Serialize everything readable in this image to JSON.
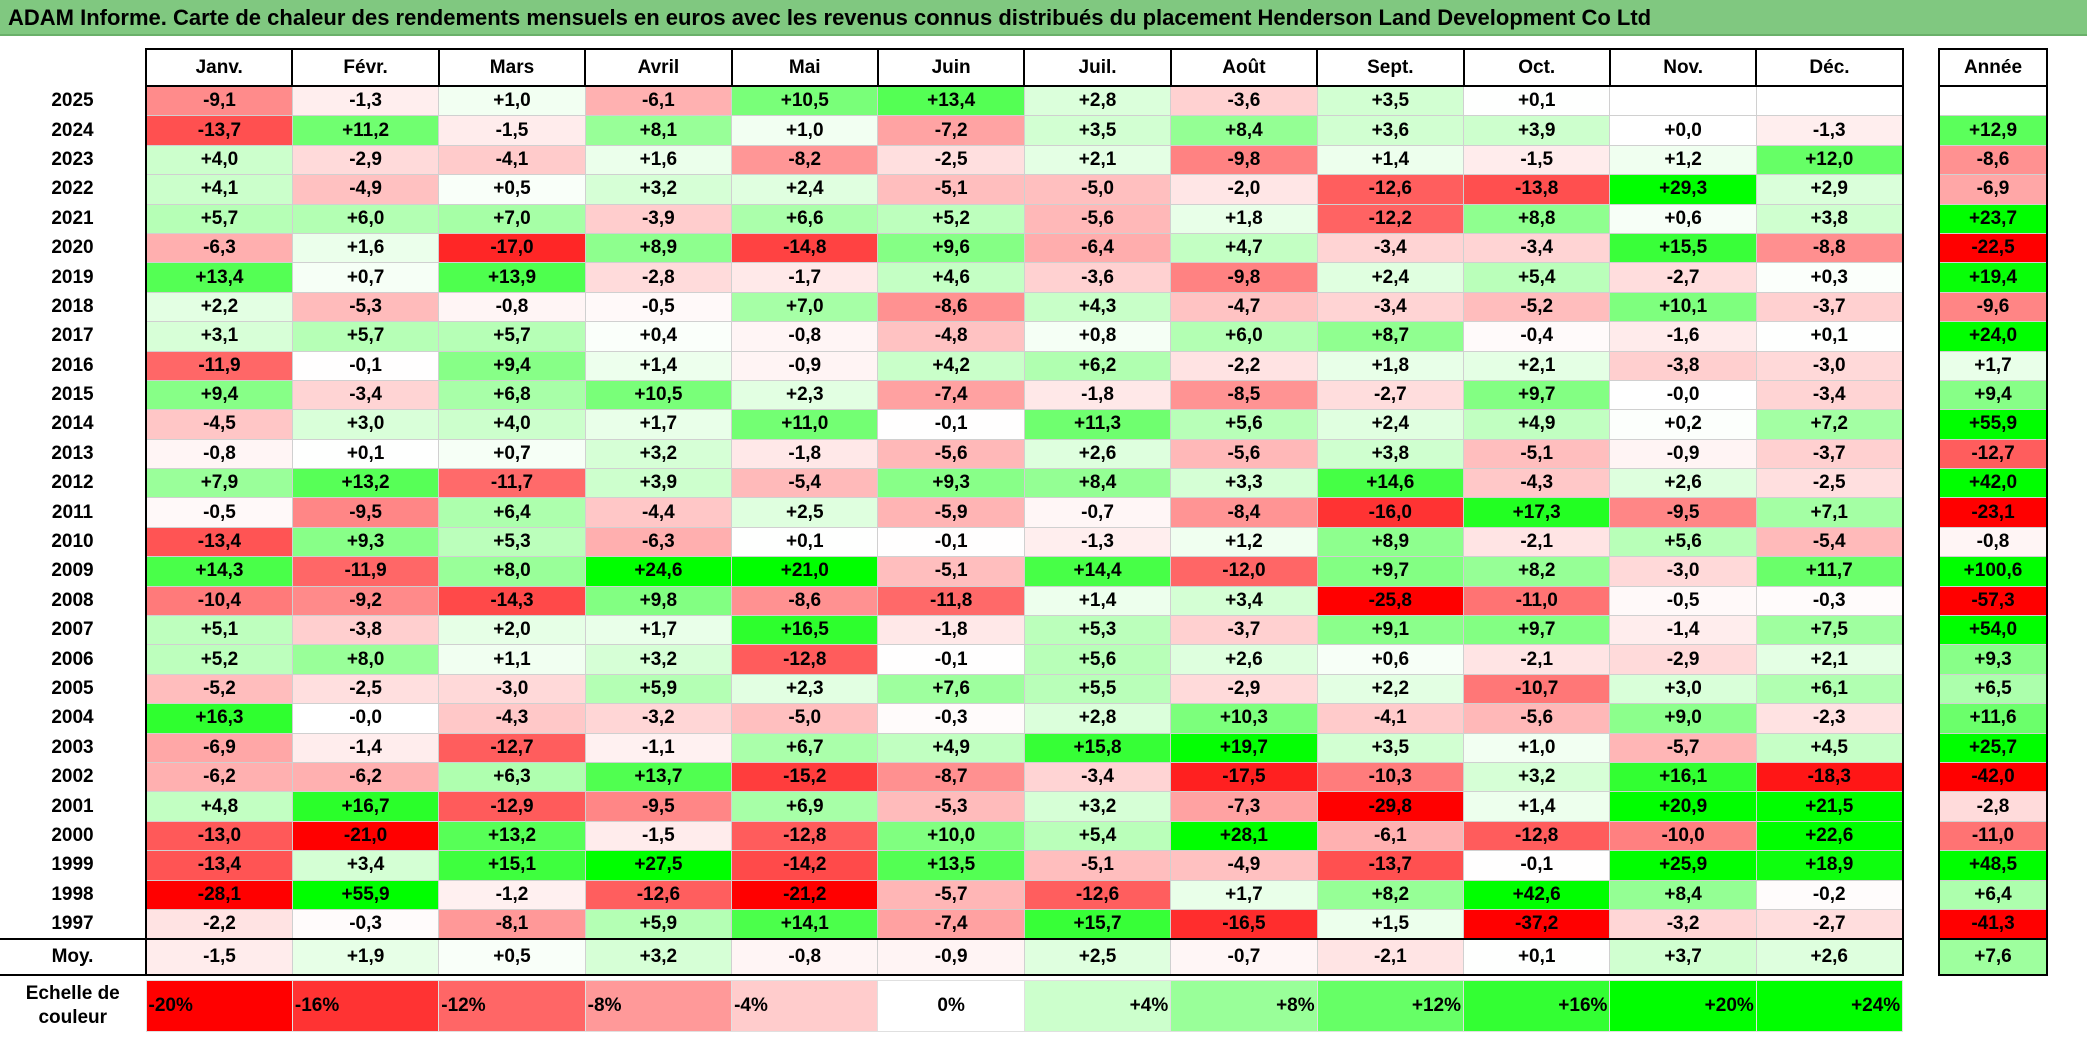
{
  "title": "ADAM Informe. Carte de chaleur des rendements mensuels en euros avec les revenus connus distribués du placement Henderson Land Development Co Ltd",
  "colors": {
    "negative": "#ff0000",
    "positive": "#00ff00",
    "neutral": "#ffffff",
    "title_bg": "#80c880"
  },
  "chart_data": {
    "type": "heatmap",
    "title": "ADAM Informe. Carte de chaleur des rendements mensuels en euros avec les revenus connus distribués du placement Henderson Land Development Co Ltd",
    "columns": [
      "Janv.",
      "Févr.",
      "Mars",
      "Avril",
      "Mai",
      "Juin",
      "Juil.",
      "Août",
      "Sept.",
      "Oct.",
      "Nov.",
      "Déc."
    ],
    "annual_header": "Année",
    "rows": [
      {
        "year": "2025",
        "values": [
          "-9,1",
          "-1,3",
          "+1,0",
          "-6,1",
          "+10,5",
          "+13,4",
          "+2,8",
          "-3,6",
          "+3,5",
          "+0,1",
          "",
          ""
        ],
        "annual": ""
      },
      {
        "year": "2024",
        "values": [
          "-13,7",
          "+11,2",
          "-1,5",
          "+8,1",
          "+1,0",
          "-7,2",
          "+3,5",
          "+8,4",
          "+3,6",
          "+3,9",
          "+0,0",
          "-1,3"
        ],
        "annual": "+12,9"
      },
      {
        "year": "2023",
        "values": [
          "+4,0",
          "-2,9",
          "-4,1",
          "+1,6",
          "-8,2",
          "-2,5",
          "+2,1",
          "-9,8",
          "+1,4",
          "-1,5",
          "+1,2",
          "+12,0"
        ],
        "annual": "-8,6"
      },
      {
        "year": "2022",
        "values": [
          "+4,1",
          "-4,9",
          "+0,5",
          "+3,2",
          "+2,4",
          "-5,1",
          "-5,0",
          "-2,0",
          "-12,6",
          "-13,8",
          "+29,3",
          "+2,9"
        ],
        "annual": "-6,9"
      },
      {
        "year": "2021",
        "values": [
          "+5,7",
          "+6,0",
          "+7,0",
          "-3,9",
          "+6,6",
          "+5,2",
          "-5,6",
          "+1,8",
          "-12,2",
          "+8,8",
          "+0,6",
          "+3,8"
        ],
        "annual": "+23,7"
      },
      {
        "year": "2020",
        "values": [
          "-6,3",
          "+1,6",
          "-17,0",
          "+8,9",
          "-14,8",
          "+9,6",
          "-6,4",
          "+4,7",
          "-3,4",
          "-3,4",
          "+15,5",
          "-8,8"
        ],
        "annual": "-22,5"
      },
      {
        "year": "2019",
        "values": [
          "+13,4",
          "+0,7",
          "+13,9",
          "-2,8",
          "-1,7",
          "+4,6",
          "-3,6",
          "-9,8",
          "+2,4",
          "+5,4",
          "-2,7",
          "+0,3"
        ],
        "annual": "+19,4"
      },
      {
        "year": "2018",
        "values": [
          "+2,2",
          "-5,3",
          "-0,8",
          "-0,5",
          "+7,0",
          "-8,6",
          "+4,3",
          "-4,7",
          "-3,4",
          "-5,2",
          "+10,1",
          "-3,7"
        ],
        "annual": "-9,6"
      },
      {
        "year": "2017",
        "values": [
          "+3,1",
          "+5,7",
          "+5,7",
          "+0,4",
          "-0,8",
          "-4,8",
          "+0,8",
          "+6,0",
          "+8,7",
          "-0,4",
          "-1,6",
          "+0,1"
        ],
        "annual": "+24,0"
      },
      {
        "year": "2016",
        "values": [
          "-11,9",
          "-0,1",
          "+9,4",
          "+1,4",
          "-0,9",
          "+4,2",
          "+6,2",
          "-2,2",
          "+1,8",
          "+2,1",
          "-3,8",
          "-3,0"
        ],
        "annual": "+1,7"
      },
      {
        "year": "2015",
        "values": [
          "+9,4",
          "-3,4",
          "+6,8",
          "+10,5",
          "+2,3",
          "-7,4",
          "-1,8",
          "-8,5",
          "-2,7",
          "+9,7",
          "-0,0",
          "-3,4"
        ],
        "annual": "+9,4"
      },
      {
        "year": "2014",
        "values": [
          "-4,5",
          "+3,0",
          "+4,0",
          "+1,7",
          "+11,0",
          "-0,1",
          "+11,3",
          "+5,6",
          "+2,4",
          "+4,9",
          "+0,2",
          "+7,2"
        ],
        "annual": "+55,9"
      },
      {
        "year": "2013",
        "values": [
          "-0,8",
          "+0,1",
          "+0,7",
          "+3,2",
          "-1,8",
          "-5,6",
          "+2,6",
          "-5,6",
          "+3,8",
          "-5,1",
          "-0,9",
          "-3,7"
        ],
        "annual": "-12,7"
      },
      {
        "year": "2012",
        "values": [
          "+7,9",
          "+13,2",
          "-11,7",
          "+3,9",
          "-5,4",
          "+9,3",
          "+8,4",
          "+3,3",
          "+14,6",
          "-4,3",
          "+2,6",
          "-2,5"
        ],
        "annual": "+42,0"
      },
      {
        "year": "2011",
        "values": [
          "-0,5",
          "-9,5",
          "+6,4",
          "-4,4",
          "+2,5",
          "-5,9",
          "-0,7",
          "-8,4",
          "-16,0",
          "+17,3",
          "-9,5",
          "+7,1"
        ],
        "annual": "-23,1"
      },
      {
        "year": "2010",
        "values": [
          "-13,4",
          "+9,3",
          "+5,3",
          "-6,3",
          "+0,1",
          "-0,1",
          "-1,3",
          "+1,2",
          "+8,9",
          "-2,1",
          "+5,6",
          "-5,4"
        ],
        "annual": "-0,8"
      },
      {
        "year": "2009",
        "values": [
          "+14,3",
          "-11,9",
          "+8,0",
          "+24,6",
          "+21,0",
          "-5,1",
          "+14,4",
          "-12,0",
          "+9,7",
          "+8,2",
          "-3,0",
          "+11,7"
        ],
        "annual": "+100,6"
      },
      {
        "year": "2008",
        "values": [
          "-10,4",
          "-9,2",
          "-14,3",
          "+9,8",
          "-8,6",
          "-11,8",
          "+1,4",
          "+3,4",
          "-25,8",
          "-11,0",
          "-0,5",
          "-0,3"
        ],
        "annual": "-57,3"
      },
      {
        "year": "2007",
        "values": [
          "+5,1",
          "-3,8",
          "+2,0",
          "+1,7",
          "+16,5",
          "-1,8",
          "+5,3",
          "-3,7",
          "+9,1",
          "+9,7",
          "-1,4",
          "+7,5"
        ],
        "annual": "+54,0"
      },
      {
        "year": "2006",
        "values": [
          "+5,2",
          "+8,0",
          "+1,1",
          "+3,2",
          "-12,8",
          "-0,1",
          "+5,6",
          "+2,6",
          "+0,6",
          "-2,1",
          "-2,9",
          "+2,1"
        ],
        "annual": "+9,3"
      },
      {
        "year": "2005",
        "values": [
          "-5,2",
          "-2,5",
          "-3,0",
          "+5,9",
          "+2,3",
          "+7,6",
          "+5,5",
          "-2,9",
          "+2,2",
          "-10,7",
          "+3,0",
          "+6,1"
        ],
        "annual": "+6,5"
      },
      {
        "year": "2004",
        "values": [
          "+16,3",
          "-0,0",
          "-4,3",
          "-3,2",
          "-5,0",
          "-0,3",
          "+2,8",
          "+10,3",
          "-4,1",
          "-5,6",
          "+9,0",
          "-2,3"
        ],
        "annual": "+11,6"
      },
      {
        "year": "2003",
        "values": [
          "-6,9",
          "-1,4",
          "-12,7",
          "-1,1",
          "+6,7",
          "+4,9",
          "+15,8",
          "+19,7",
          "+3,5",
          "+1,0",
          "-5,7",
          "+4,5"
        ],
        "annual": "+25,7"
      },
      {
        "year": "2002",
        "values": [
          "-6,2",
          "-6,2",
          "+6,3",
          "+13,7",
          "-15,2",
          "-8,7",
          "-3,4",
          "-17,5",
          "-10,3",
          "+3,2",
          "+16,1",
          "-18,3"
        ],
        "annual": "-42,0"
      },
      {
        "year": "2001",
        "values": [
          "+4,8",
          "+16,7",
          "-12,9",
          "-9,5",
          "+6,9",
          "-5,3",
          "+3,2",
          "-7,3",
          "-29,8",
          "+1,4",
          "+20,9",
          "+21,5"
        ],
        "annual": "-2,8"
      },
      {
        "year": "2000",
        "values": [
          "-13,0",
          "-21,0",
          "+13,2",
          "-1,5",
          "-12,8",
          "+10,0",
          "+5,4",
          "+28,1",
          "-6,1",
          "-12,8",
          "-10,0",
          "+22,6"
        ],
        "annual": "-11,0"
      },
      {
        "year": "1999",
        "values": [
          "-13,4",
          "+3,4",
          "+15,1",
          "+27,5",
          "-14,2",
          "+13,5",
          "-5,1",
          "-4,9",
          "-13,7",
          "-0,1",
          "+25,9",
          "+18,9"
        ],
        "annual": "+48,5"
      },
      {
        "year": "1998",
        "values": [
          "-28,1",
          "+55,9",
          "-1,2",
          "-12,6",
          "-21,2",
          "-5,7",
          "-12,6",
          "+1,7",
          "+8,2",
          "+42,6",
          "+8,4",
          "-0,2"
        ],
        "annual": "+6,4"
      },
      {
        "year": "1997",
        "values": [
          "-2,2",
          "-0,3",
          "-8,1",
          "+5,9",
          "+14,1",
          "-7,4",
          "+15,7",
          "-16,5",
          "+1,5",
          "-37,2",
          "-3,2",
          "-2,7"
        ],
        "annual": "-41,3"
      }
    ],
    "average": {
      "label": "Moy.",
      "values": [
        "-1,5",
        "+1,9",
        "+0,5",
        "+3,2",
        "-0,8",
        "-0,9",
        "+2,5",
        "-0,7",
        "-2,1",
        "+0,1",
        "+3,7",
        "+2,6"
      ],
      "annual": "+7,6"
    },
    "color_scale": {
      "label": "Echelle de couleur",
      "stops": [
        {
          "label": "-20%",
          "value": -20
        },
        {
          "label": "-16%",
          "value": -16
        },
        {
          "label": "-12%",
          "value": -12
        },
        {
          "label": "-8%",
          "value": -8
        },
        {
          "label": "-4%",
          "value": -4
        },
        {
          "label": "0%",
          "value": 0
        },
        {
          "label": "+4%",
          "value": 4
        },
        {
          "label": "+8%",
          "value": 8
        },
        {
          "label": "+12%",
          "value": 12
        },
        {
          "label": "+16%",
          "value": 16
        },
        {
          "label": "+20%",
          "value": 20
        },
        {
          "label": "+24%",
          "value": 24
        }
      ]
    }
  }
}
